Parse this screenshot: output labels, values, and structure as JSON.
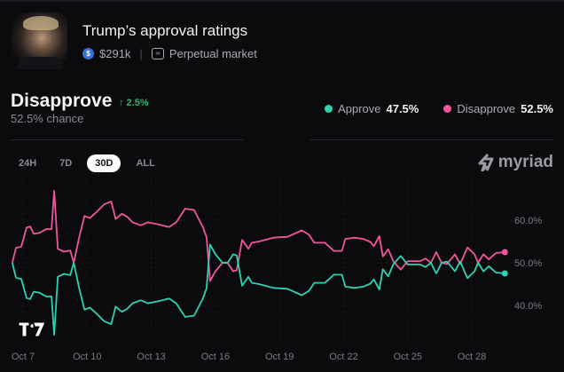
{
  "market": {
    "title": "Trump’s approval ratings",
    "volume": "$291k",
    "market_type": "Perpetual market",
    "volume_icon": "usdc-coin-icon",
    "market_type_icon": "infinity-icon"
  },
  "selected": {
    "outcome": "Disapprove",
    "change": "↑ 2.5%",
    "chance": "52.5% chance"
  },
  "legend": [
    {
      "label": "Approve",
      "value": "47.5%",
      "color": "#2fd1b3"
    },
    {
      "label": "Disapprove",
      "value": "52.5%",
      "color": "#f0569b"
    }
  ],
  "tabs": [
    {
      "label": "24H",
      "active": false
    },
    {
      "label": "7D",
      "active": false
    },
    {
      "label": "30D",
      "active": true
    },
    {
      "label": "ALL",
      "active": false
    }
  ],
  "brand": "myriad",
  "chart_data": {
    "type": "line",
    "x_ticks": [
      "Oct 7",
      "Oct 10",
      "Oct 13",
      "Oct 16",
      "Oct 19",
      "Oct 22",
      "Oct 25",
      "Oct 28"
    ],
    "y_ticks": [
      "40.0%",
      "50.0%",
      "60.0%"
    ],
    "ylim": [
      40,
      60
    ],
    "grid": true,
    "series": [
      {
        "name": "Disapprove",
        "color": "#f0569b",
        "x": [
          "Oct 6 12:00",
          "Oct 6 16:00",
          "Oct 6 22:00",
          "Oct 7 04:00",
          "Oct 7 08:00",
          "Oct 7 12:00",
          "Oct 7 18:00",
          "Oct 8 02:00",
          "Oct 8 08:00",
          "Oct 8 11:00",
          "Oct 8 15:00",
          "Oct 8 22:00",
          "Oct 9 05:00",
          "Oct 9 09:00",
          "Oct 9 15:00",
          "Oct 9 21:00",
          "Oct 10 03:00",
          "Oct 10 11:00",
          "Oct 10 19:00",
          "Oct 11 03:00",
          "Oct 11 08:00",
          "Oct 11 15:00",
          "Oct 11 21:00",
          "Oct 12 03:00",
          "Oct 12 12:00",
          "Oct 12 20:00",
          "Oct 13 08:00",
          "Oct 13 20:00",
          "Oct 14 04:00",
          "Oct 14 14:00",
          "Oct 15 00:00",
          "Oct 15 10:00",
          "Oct 15 14:00",
          "Oct 15 18:00",
          "Oct 16 00:00",
          "Oct 16 08:00",
          "Oct 16 14:00",
          "Oct 16 20:00",
          "Oct 17 00:00",
          "Oct 17 06:00",
          "Oct 17 13:00",
          "Oct 17 17:00",
          "Oct 18 01:00",
          "Oct 18 17:00",
          "Oct 19 09:00",
          "Oct 20 01:00",
          "Oct 20 09:00",
          "Oct 20 15:00",
          "Oct 21 03:00",
          "Oct 21 13:00",
          "Oct 21 22:00",
          "Oct 22 02:00",
          "Oct 22 12:00",
          "Oct 22 22:00",
          "Oct 23 06:00",
          "Oct 23 10:00",
          "Oct 23 16:00",
          "Oct 23 20:00",
          "Oct 24 02:00",
          "Oct 24 08:00",
          "Oct 24 16:00",
          "Oct 25 00:00",
          "Oct 25 14:00",
          "Oct 25 20:00",
          "Oct 26 02:00",
          "Oct 26 08:00",
          "Oct 26 14:00",
          "Oct 26 20:00",
          "Oct 27 05:00",
          "Oct 27 11:00",
          "Oct 27 19:00",
          "Oct 28 03:00",
          "Oct 28 07:00",
          "Oct 28 13:00",
          "Oct 28 19:00",
          "Oct 29 03:00",
          "Oct 29 13:00"
        ],
        "values": [
          50,
          53.5,
          53.8,
          58.3,
          58.5,
          56.8,
          57,
          57.9,
          57.9,
          66.9,
          53.3,
          52.6,
          52.9,
          50,
          56,
          61,
          60.5,
          62,
          63.7,
          64.4,
          60.3,
          61.5,
          60.8,
          59.5,
          58.8,
          59.5,
          59,
          58.4,
          59.5,
          62.7,
          62.4,
          58.4,
          56,
          45.7,
          48,
          50,
          49.9,
          48,
          48.3,
          55.4,
          53.3,
          54.7,
          55,
          55.9,
          56.1,
          57.6,
          56.6,
          54.7,
          54.7,
          52.8,
          52.8,
          55.6,
          55.9,
          55.6,
          54.9,
          53.9,
          56.3,
          51.5,
          53.2,
          50.3,
          48.4,
          50.4,
          50.4,
          51,
          50,
          52.5,
          50,
          49.7,
          52,
          49.7,
          53.6,
          52,
          50,
          52,
          50.8,
          52.3,
          52.5
        ]
      },
      {
        "name": "Approve",
        "color": "#2fd1b3",
        "x": [
          "Oct 6 12:00",
          "Oct 6 16:00",
          "Oct 6 22:00",
          "Oct 7 04:00",
          "Oct 7 08:00",
          "Oct 7 12:00",
          "Oct 7 18:00",
          "Oct 8 02:00",
          "Oct 8 08:00",
          "Oct 8 11:00",
          "Oct 8 15:00",
          "Oct 8 22:00",
          "Oct 9 05:00",
          "Oct 9 09:00",
          "Oct 9 15:00",
          "Oct 9 21:00",
          "Oct 10 03:00",
          "Oct 10 11:00",
          "Oct 10 19:00",
          "Oct 11 03:00",
          "Oct 11 08:00",
          "Oct 11 15:00",
          "Oct 11 21:00",
          "Oct 12 03:00",
          "Oct 12 12:00",
          "Oct 12 20:00",
          "Oct 13 08:00",
          "Oct 13 20:00",
          "Oct 14 04:00",
          "Oct 14 14:00",
          "Oct 15 00:00",
          "Oct 15 10:00",
          "Oct 15 14:00",
          "Oct 15 18:00",
          "Oct 16 00:00",
          "Oct 16 08:00",
          "Oct 16 14:00",
          "Oct 16 20:00",
          "Oct 17 00:00",
          "Oct 17 06:00",
          "Oct 17 13:00",
          "Oct 17 17:00",
          "Oct 18 01:00",
          "Oct 18 17:00",
          "Oct 19 09:00",
          "Oct 20 01:00",
          "Oct 20 09:00",
          "Oct 20 15:00",
          "Oct 21 03:00",
          "Oct 21 13:00",
          "Oct 21 22:00",
          "Oct 22 02:00",
          "Oct 22 12:00",
          "Oct 22 22:00",
          "Oct 23 06:00",
          "Oct 23 10:00",
          "Oct 23 16:00",
          "Oct 23 20:00",
          "Oct 24 02:00",
          "Oct 24 08:00",
          "Oct 24 16:00",
          "Oct 25 00:00",
          "Oct 25 14:00",
          "Oct 25 20:00",
          "Oct 26 02:00",
          "Oct 26 08:00",
          "Oct 26 14:00",
          "Oct 26 20:00",
          "Oct 27 05:00",
          "Oct 27 11:00",
          "Oct 27 19:00",
          "Oct 28 03:00",
          "Oct 28 07:00",
          "Oct 28 13:00",
          "Oct 28 19:00",
          "Oct 29 03:00",
          "Oct 29 13:00"
        ],
        "values": [
          50,
          46.5,
          46.2,
          41.7,
          41.5,
          43.2,
          43,
          42.1,
          42.1,
          33.1,
          46.7,
          47.4,
          47.1,
          50,
          44,
          39,
          39.5,
          38,
          36.3,
          35.6,
          39.7,
          38.5,
          39.2,
          40.5,
          41.2,
          40.5,
          41,
          41.6,
          40.5,
          37.3,
          37.6,
          41.6,
          44,
          54.3,
          52,
          50,
          50.1,
          52,
          51.7,
          44.6,
          46.7,
          45.3,
          45,
          44.1,
          43.9,
          42.4,
          43.4,
          45.3,
          45.3,
          47.2,
          47.2,
          44.4,
          44.1,
          44.4,
          45.1,
          46.1,
          43.7,
          48.5,
          46.8,
          49.7,
          51.6,
          49.6,
          49.6,
          49,
          50,
          47.5,
          50,
          50.3,
          48,
          50.3,
          46.4,
          48,
          50,
          48,
          49.2,
          47.7,
          47.5
        ]
      }
    ]
  }
}
